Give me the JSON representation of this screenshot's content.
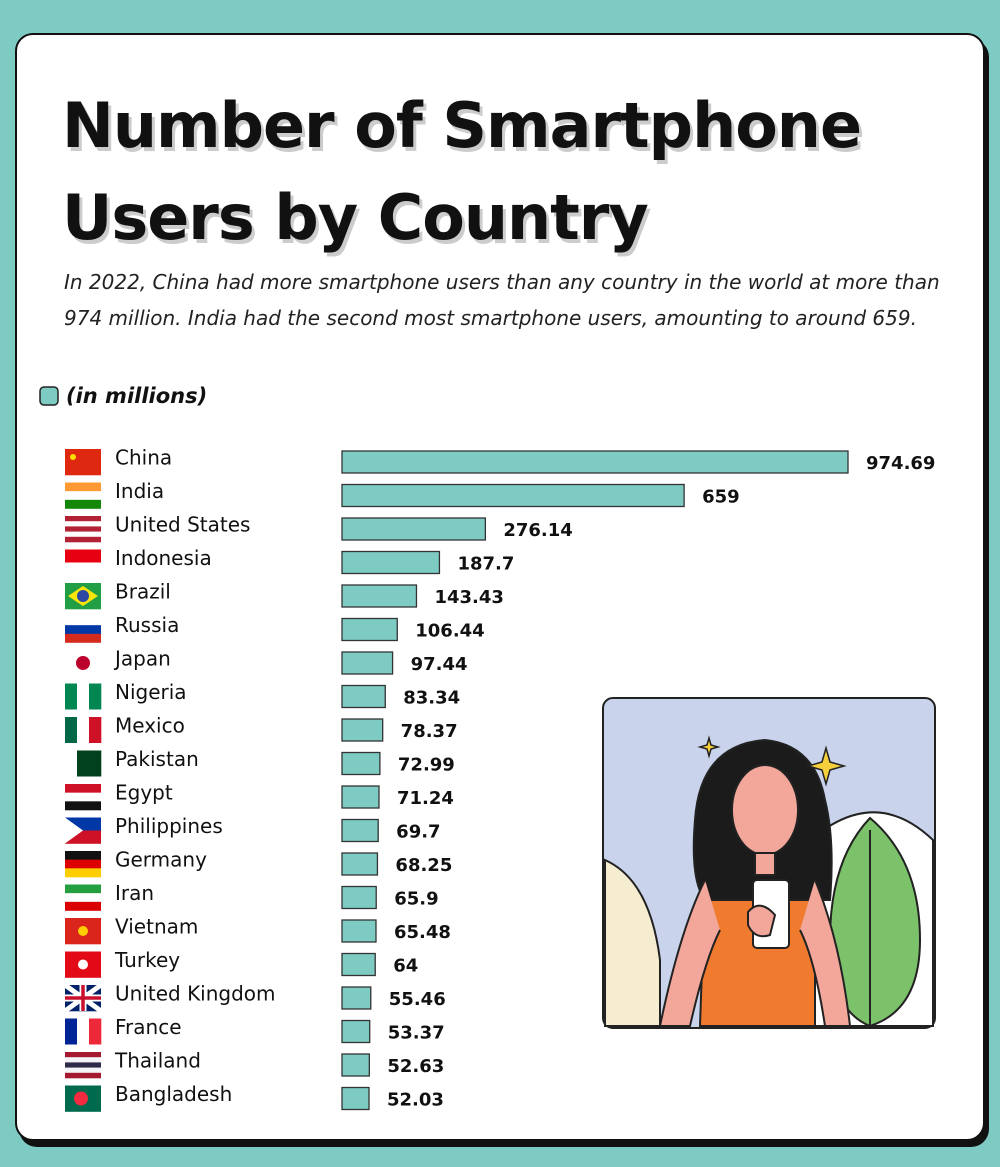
{
  "chart_data": {
    "type": "bar",
    "orientation": "horizontal",
    "title": "Number of Smartphone Users by Country",
    "subtitle": "In 2022, China had more smartphone users than any country in the world at more than 974 million. India had the second most smartphone users, amounting to around 659.",
    "legend_label": "(in millions)",
    "color": "#7ecbc4",
    "categories": [
      "China",
      "India",
      "United States",
      "Indonesia",
      "Brazil",
      "Russia",
      "Japan",
      "Nigeria",
      "Mexico",
      "Pakistan",
      "Egypt",
      "Philippines",
      "Germany",
      "Iran",
      "Vietnam",
      "Turkey",
      "United Kingdom",
      "France",
      "Thailand",
      "Bangladesh"
    ],
    "values": [
      974.69,
      659,
      276.14,
      187.7,
      143.43,
      106.44,
      97.44,
      83.34,
      78.37,
      72.99,
      71.24,
      69.7,
      68.25,
      65.9,
      65.48,
      64,
      55.46,
      53.37,
      52.63,
      52.03
    ]
  }
}
